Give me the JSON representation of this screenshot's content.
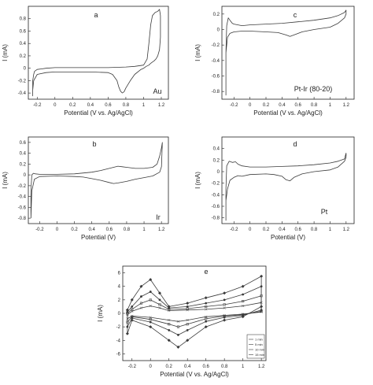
{
  "chart_data": [
    {
      "id": "a",
      "type": "line",
      "label": "a",
      "metal": "Au",
      "xlabel": "Potential (V vs. Ag/AgCl)",
      "ylabel": "I (mA)",
      "xlim": [
        -0.3,
        1.28
      ],
      "ylim": [
        -0.5,
        1.0
      ],
      "xticks": [
        -0.2,
        0,
        0.2,
        0.4,
        0.6,
        0.8,
        1,
        1.2
      ],
      "xtick_labels": [
        "-0.2",
        "0",
        "0.2",
        "0.4",
        "0.6",
        "0.8",
        "1",
        "1.2"
      ],
      "yticks": [
        -0.4,
        -0.2,
        0,
        0.2,
        0.4,
        0.6,
        0.8
      ],
      "ytick_labels": [
        "-0.4",
        "-0.2",
        "0",
        "0.2",
        "0.4",
        "0.6",
        "0.8"
      ],
      "series": [
        {
          "x": [
            -0.25,
            -0.25,
            -0.24,
            -0.23,
            -0.2,
            -0.15,
            -0.1,
            0.0,
            0.2,
            0.4,
            0.6,
            0.8,
            0.9,
            1.0,
            1.04,
            1.06,
            1.08,
            1.1,
            1.13,
            1.16,
            1.18,
            1.19,
            1.19,
            1.18,
            1.16,
            1.14,
            1.12,
            1.1,
            1.08,
            1.06,
            1.03,
            1.0,
            0.97,
            0.9,
            0.85,
            0.8,
            0.78,
            0.76,
            0.74,
            0.72,
            0.7,
            0.65,
            0.6,
            0.4,
            0.2,
            0.0,
            -0.1,
            -0.2,
            -0.24,
            -0.25,
            -0.25
          ],
          "y": [
            -0.45,
            -0.2,
            -0.1,
            -0.05,
            -0.02,
            -0.01,
            0.0,
            0.01,
            0.01,
            0.01,
            0.01,
            0.02,
            0.03,
            0.05,
            0.15,
            0.4,
            0.7,
            0.85,
            0.9,
            0.92,
            0.95,
            0.85,
            0.5,
            0.3,
            0.2,
            0.15,
            0.12,
            0.1,
            0.08,
            0.05,
            0.03,
            0.0,
            -0.02,
            -0.1,
            -0.2,
            -0.32,
            -0.38,
            -0.4,
            -0.37,
            -0.3,
            -0.2,
            -0.1,
            -0.07,
            -0.06,
            -0.06,
            -0.06,
            -0.07,
            -0.1,
            -0.2,
            -0.35,
            -0.45
          ]
        }
      ]
    },
    {
      "id": "c",
      "type": "line",
      "label": "c",
      "metal": "Pt-Ir (80-20)",
      "xlabel": "Potential (V vs. Ag/AgCl)",
      "ylabel": "I (mA)",
      "xlim": [
        -0.35,
        1.3
      ],
      "ylim": [
        -0.9,
        0.3
      ],
      "xticks": [
        -0.2,
        0,
        0.2,
        0.4,
        0.6,
        0.8,
        1,
        1.2
      ],
      "xtick_labels": [
        "-0.2",
        "0",
        "0.2",
        "0.4",
        "0.6",
        "0.8",
        "1",
        "1.2"
      ],
      "yticks": [
        -0.8,
        -0.6,
        -0.4,
        -0.2,
        0,
        0.2
      ],
      "ytick_labels": [
        "-0.8",
        "-0.6",
        "-0.4",
        "-0.2",
        "0",
        "0.2"
      ],
      "series": [
        {
          "x": [
            -0.3,
            -0.3,
            -0.29,
            -0.27,
            -0.25,
            -0.22,
            -0.2,
            -0.15,
            -0.1,
            0.0,
            0.2,
            0.4,
            0.6,
            0.8,
            1.0,
            1.1,
            1.18,
            1.2,
            1.2,
            1.18,
            1.1,
            1.0,
            0.8,
            0.65,
            0.55,
            0.5,
            0.45,
            0.35,
            0.2,
            0.0,
            -0.1,
            -0.2,
            -0.25,
            -0.28,
            -0.3,
            -0.3
          ],
          "y": [
            -0.85,
            -0.3,
            0.05,
            0.15,
            0.12,
            0.08,
            0.07,
            0.06,
            0.05,
            0.06,
            0.07,
            0.08,
            0.1,
            0.12,
            0.15,
            0.18,
            0.22,
            0.25,
            0.2,
            0.15,
            0.08,
            0.03,
            0.0,
            -0.03,
            -0.07,
            -0.09,
            -0.07,
            -0.04,
            -0.03,
            -0.02,
            -0.02,
            -0.03,
            -0.05,
            -0.1,
            -0.3,
            -0.85
          ]
        }
      ]
    },
    {
      "id": "b",
      "type": "line",
      "label": "b",
      "metal": "Ir",
      "xlabel": "Potential (V)",
      "ylabel": "I (mA)",
      "xlim": [
        -0.33,
        1.28
      ],
      "ylim": [
        -0.9,
        0.7
      ],
      "xticks": [
        -0.2,
        0,
        0.2,
        0.4,
        0.6,
        0.8,
        1,
        1.2
      ],
      "xtick_labels": [
        "-0.2",
        "0",
        "0.2",
        "0.4",
        "0.6",
        "0.8",
        "1",
        "1.2"
      ],
      "yticks": [
        -0.8,
        -0.6,
        -0.4,
        -0.2,
        0,
        0.2,
        0.4,
        0.6
      ],
      "ytick_labels": [
        "-0.8",
        "-0.6",
        "-0.4",
        "-0.2",
        "0",
        "0.2",
        "0.4",
        "0.6"
      ],
      "series": [
        {
          "x": [
            -0.3,
            -0.3,
            -0.29,
            -0.27,
            -0.25,
            -0.2,
            -0.1,
            0.0,
            0.2,
            0.4,
            0.5,
            0.6,
            0.7,
            0.75,
            0.8,
            0.9,
            1.0,
            1.1,
            1.15,
            1.18,
            1.2,
            1.21,
            1.2,
            1.18,
            1.1,
            1.0,
            0.9,
            0.8,
            0.7,
            0.65,
            0.6,
            0.5,
            0.4,
            0.3,
            0.2,
            0.0,
            -0.2,
            -0.26,
            -0.29,
            -0.3
          ],
          "y": [
            -0.8,
            -0.3,
            0.0,
            0.03,
            0.02,
            0.01,
            0.01,
            0.01,
            0.02,
            0.05,
            0.08,
            0.12,
            0.16,
            0.15,
            0.14,
            0.12,
            0.12,
            0.14,
            0.2,
            0.35,
            0.5,
            0.6,
            0.15,
            0.05,
            -0.02,
            -0.05,
            -0.08,
            -0.12,
            -0.15,
            -0.16,
            -0.14,
            -0.1,
            -0.07,
            -0.04,
            -0.03,
            -0.02,
            -0.03,
            -0.08,
            -0.3,
            -0.8
          ]
        }
      ]
    },
    {
      "id": "d",
      "type": "line",
      "label": "d",
      "metal": "Pt",
      "xlabel": "Potential (V)",
      "ylabel": "I (mA)",
      "xlim": [
        -0.35,
        1.3
      ],
      "ylim": [
        -0.9,
        0.6
      ],
      "xticks": [
        -0.2,
        0,
        0.2,
        0.4,
        0.6,
        0.8,
        1,
        1.2
      ],
      "xtick_labels": [
        "-0.2",
        "0",
        "0.2",
        "0.4",
        "0.6",
        "0.8",
        "1",
        "1.2"
      ],
      "yticks": [
        -0.8,
        -0.6,
        -0.4,
        -0.2,
        0,
        0.2,
        0.4
      ],
      "ytick_labels": [
        "-0.8",
        "-0.6",
        "-0.4",
        "-0.2",
        "0",
        "0.2",
        "0.4"
      ],
      "series": [
        {
          "x": [
            -0.3,
            -0.3,
            -0.29,
            -0.26,
            -0.22,
            -0.18,
            -0.15,
            -0.1,
            0.0,
            0.2,
            0.4,
            0.6,
            0.8,
            1.0,
            1.1,
            1.18,
            1.2,
            1.2,
            1.18,
            1.1,
            1.0,
            0.8,
            0.65,
            0.55,
            0.5,
            0.45,
            0.4,
            0.3,
            0.2,
            0.0,
            -0.1,
            -0.15,
            -0.2,
            -0.25,
            -0.28,
            -0.3,
            -0.3
          ],
          "y": [
            -0.85,
            -0.3,
            0.1,
            0.18,
            0.16,
            0.17,
            0.13,
            0.1,
            0.08,
            0.08,
            0.09,
            0.1,
            0.12,
            0.15,
            0.18,
            0.22,
            0.32,
            0.25,
            0.18,
            0.08,
            0.03,
            0.0,
            -0.04,
            -0.1,
            -0.16,
            -0.14,
            -0.08,
            -0.05,
            -0.04,
            -0.05,
            -0.08,
            -0.07,
            -0.1,
            -0.15,
            -0.3,
            -0.5,
            -0.85
          ]
        }
      ]
    },
    {
      "id": "e",
      "type": "line",
      "label": "e",
      "xlabel": "Potential (V vs. Ag/AgCl)",
      "ylabel": "I (mA)",
      "xlim": [
        -0.3,
        1.25
      ],
      "ylim": [
        -7,
        7
      ],
      "xticks": [
        -0.2,
        0,
        0.2,
        0.4,
        0.6,
        0.8,
        1,
        1.2
      ],
      "xtick_labels": [
        "-0.2",
        "0",
        "0.2",
        "0.4",
        "0.6",
        "0.8",
        "1",
        "1.2"
      ],
      "yticks": [
        -6,
        -4,
        -2,
        0,
        2,
        4,
        6
      ],
      "ytick_labels": [
        "-6",
        "-4",
        "-2",
        "0",
        "2",
        "4",
        "6"
      ],
      "legend_position": "lower-right",
      "series": [
        {
          "name": "1 min",
          "marker": "diamond",
          "x": [
            -0.25,
            -0.2,
            -0.1,
            0.0,
            0.1,
            0.2,
            0.4,
            0.6,
            0.8,
            1.0,
            1.2,
            1.2,
            1.0,
            0.8,
            0.6,
            0.4,
            0.3,
            0.2,
            0.0,
            -0.2,
            -0.25,
            -0.25
          ],
          "y": [
            0.5,
            2.0,
            4.0,
            5.0,
            3.0,
            1.0,
            1.5,
            2.3,
            3.0,
            4.0,
            5.5,
            1.0,
            -0.5,
            -1.0,
            -2.0,
            -4.0,
            -5.0,
            -4.0,
            -2.0,
            -1.0,
            -3.0,
            0.5
          ]
        },
        {
          "name": "5 min",
          "marker": "circle",
          "x": [
            -0.25,
            -0.2,
            -0.1,
            0.0,
            0.1,
            0.2,
            0.4,
            0.6,
            0.8,
            1.0,
            1.2,
            1.2,
            1.0,
            0.8,
            0.6,
            0.4,
            0.3,
            0.2,
            0.0,
            -0.2,
            -0.25,
            -0.25
          ],
          "y": [
            0.2,
            1.0,
            2.5,
            3.2,
            2.0,
            0.8,
            1.0,
            1.5,
            2.0,
            2.8,
            4.0,
            0.5,
            -0.3,
            -0.6,
            -1.2,
            -2.5,
            -3.2,
            -2.5,
            -1.3,
            -0.7,
            -2.0,
            0.2
          ]
        },
        {
          "name": "10 min",
          "marker": "square",
          "x": [
            -0.25,
            -0.2,
            -0.1,
            0.0,
            0.1,
            0.2,
            0.4,
            0.6,
            0.8,
            1.0,
            1.2,
            1.2,
            1.0,
            0.8,
            0.6,
            0.4,
            0.3,
            0.2,
            0.0,
            -0.2,
            -0.25,
            -0.25
          ],
          "y": [
            0.0,
            0.6,
            1.5,
            2.0,
            1.3,
            0.6,
            0.7,
            1.0,
            1.3,
            1.8,
            2.6,
            0.3,
            -0.2,
            -0.4,
            -0.8,
            -1.6,
            -2.0,
            -1.6,
            -0.9,
            -0.5,
            -1.3,
            0.0
          ]
        },
        {
          "name": "15 min",
          "marker": "cross",
          "x": [
            -0.25,
            -0.2,
            -0.1,
            0.0,
            0.1,
            0.2,
            0.4,
            0.6,
            0.8,
            1.0,
            1.2,
            1.2,
            1.0,
            0.8,
            0.6,
            0.4,
            0.3,
            0.2,
            0.0,
            -0.2,
            -0.25,
            -0.25
          ],
          "y": [
            -0.2,
            0.3,
            0.8,
            1.1,
            0.8,
            0.4,
            0.5,
            0.6,
            0.8,
            1.1,
            1.6,
            0.2,
            -0.1,
            -0.3,
            -0.5,
            -1.0,
            -1.2,
            -1.0,
            -0.6,
            -0.4,
            -0.8,
            -0.2
          ]
        }
      ]
    }
  ],
  "colors": {
    "line": "#3a3a3a",
    "axis": "#222222"
  }
}
